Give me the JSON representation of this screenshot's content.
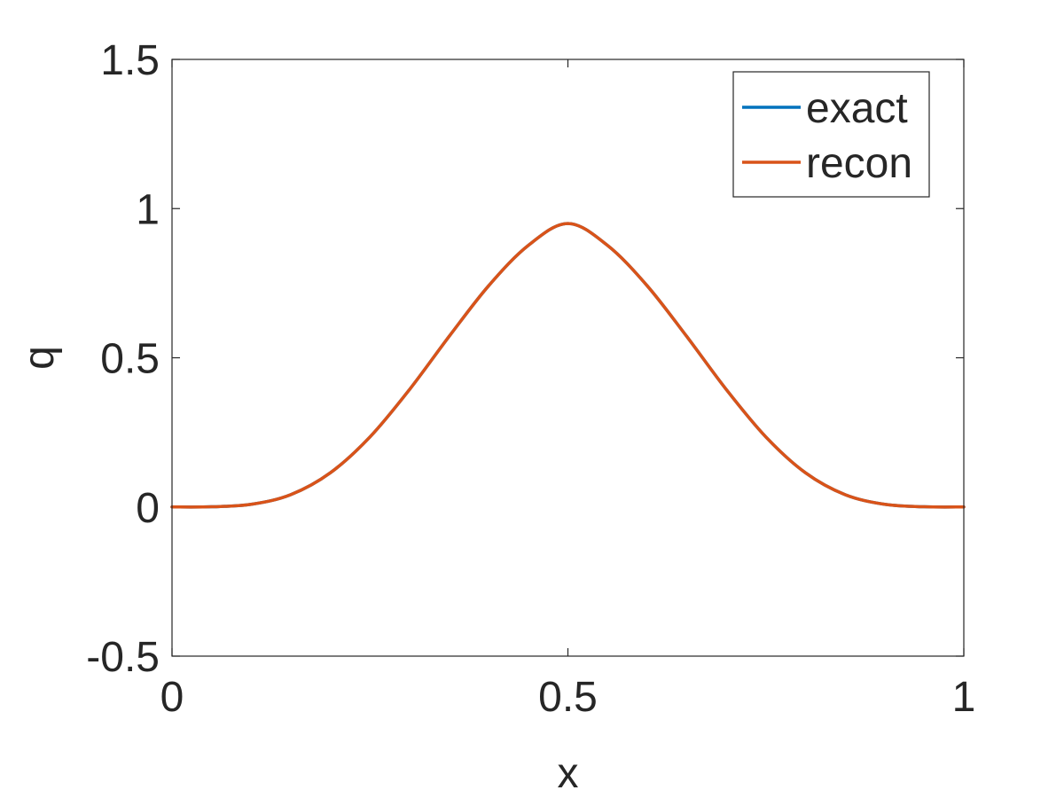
{
  "chart_data": {
    "type": "line",
    "xlabel": "x",
    "ylabel": "q",
    "xlim": [
      0,
      1
    ],
    "ylim": [
      -0.5,
      1.5
    ],
    "xticks": [
      0,
      0.5,
      1
    ],
    "xtick_labels": [
      "0",
      "0.5",
      "1"
    ],
    "yticks": [
      -0.5,
      0,
      0.5,
      1,
      1.5
    ],
    "ytick_labels": [
      "-0.5",
      "0",
      "0.5",
      "1",
      "1.5"
    ],
    "grid": false,
    "legend_position": "top-right",
    "x": [
      0,
      0.05,
      0.1,
      0.15,
      0.2,
      0.25,
      0.3,
      0.35,
      0.4,
      0.45,
      0.5,
      0.55,
      0.6,
      0.65,
      0.7,
      0.75,
      0.8,
      0.85,
      0.9,
      0.95,
      1
    ],
    "series": [
      {
        "name": "exact",
        "color": "#0072BD",
        "values": [
          0,
          0.0006,
          0.0089,
          0.0413,
          0.1146,
          0.2346,
          0.3937,
          0.5717,
          0.7417,
          0.8766,
          0.95,
          0.8766,
          0.7417,
          0.5717,
          0.3937,
          0.2346,
          0.1146,
          0.0413,
          0.0089,
          0.0006,
          0
        ]
      },
      {
        "name": "recon",
        "color": "#D95319",
        "values": [
          0,
          0.0006,
          0.0089,
          0.0413,
          0.1146,
          0.2346,
          0.3937,
          0.5717,
          0.7417,
          0.8766,
          0.95,
          0.8766,
          0.7417,
          0.5717,
          0.3937,
          0.2346,
          0.1146,
          0.0413,
          0.0089,
          0.0006,
          0
        ]
      }
    ]
  }
}
